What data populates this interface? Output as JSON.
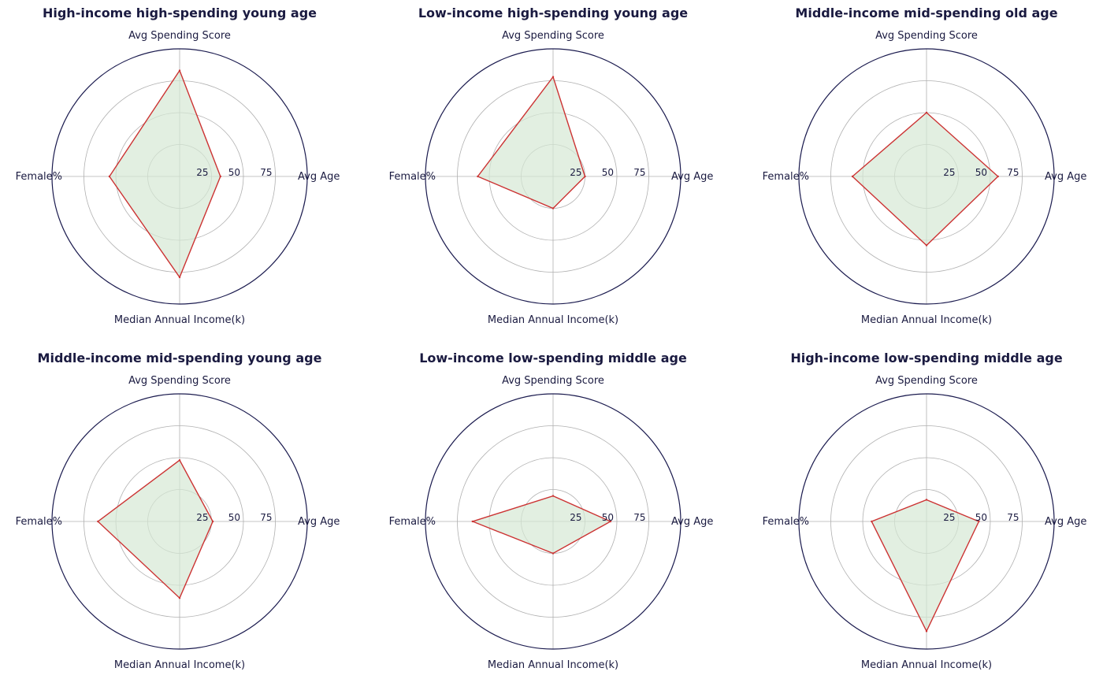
{
  "colors": {
    "outer_ring": "#1a1a4e",
    "grid": "#b0b0b0",
    "series_line": "#cc3333",
    "series_fill": "#d5e8d4",
    "text": "#1a1a40"
  },
  "chart_data": [
    {
      "type": "radar",
      "title": "High-income high-spending young age",
      "axes": [
        "Avg Age",
        "Avg Spending Score",
        "Female%",
        "Median Annual Income(k)"
      ],
      "rticks": [
        25,
        50,
        75
      ],
      "rlim": [
        0,
        100
      ],
      "values": [
        32,
        83,
        55,
        79
      ],
      "grid": true
    },
    {
      "type": "radar",
      "title": "Low-income high-spending young age",
      "axes": [
        "Avg Age",
        "Avg Spending Score",
        "Female%",
        "Median Annual Income(k)"
      ],
      "rticks": [
        25,
        50,
        75
      ],
      "rlim": [
        0,
        100
      ],
      "values": [
        25,
        78,
        59,
        25
      ],
      "grid": true
    },
    {
      "type": "radar",
      "title": "Middle-income mid-spending old age",
      "axes": [
        "Avg Age",
        "Avg Spending Score",
        "Female%",
        "Median Annual Income(k)"
      ],
      "rticks": [
        25,
        50,
        75
      ],
      "rlim": [
        0,
        100
      ],
      "values": [
        56,
        50,
        58,
        54
      ],
      "grid": true
    },
    {
      "type": "radar",
      "title": "Middle-income mid-spending young age",
      "axes": [
        "Avg Age",
        "Avg Spending Score",
        "Female%",
        "Median Annual Income(k)"
      ],
      "rticks": [
        25,
        50,
        75
      ],
      "rlim": [
        0,
        100
      ],
      "values": [
        26,
        48,
        64,
        60
      ],
      "grid": true
    },
    {
      "type": "radar",
      "title": "Low-income low-spending middle age",
      "axes": [
        "Avg Age",
        "Avg Spending Score",
        "Female%",
        "Median Annual Income(k)"
      ],
      "rticks": [
        25,
        50,
        75
      ],
      "rlim": [
        0,
        100
      ],
      "values": [
        45,
        20,
        63,
        25
      ],
      "grid": true
    },
    {
      "type": "radar",
      "title": "High-income low-spending middle age",
      "axes": [
        "Avg Age",
        "Avg Spending Score",
        "Female%",
        "Median Annual Income(k)"
      ],
      "rticks": [
        25,
        50,
        75
      ],
      "rlim": [
        0,
        100
      ],
      "values": [
        41,
        17,
        43,
        86
      ],
      "grid": true
    }
  ]
}
